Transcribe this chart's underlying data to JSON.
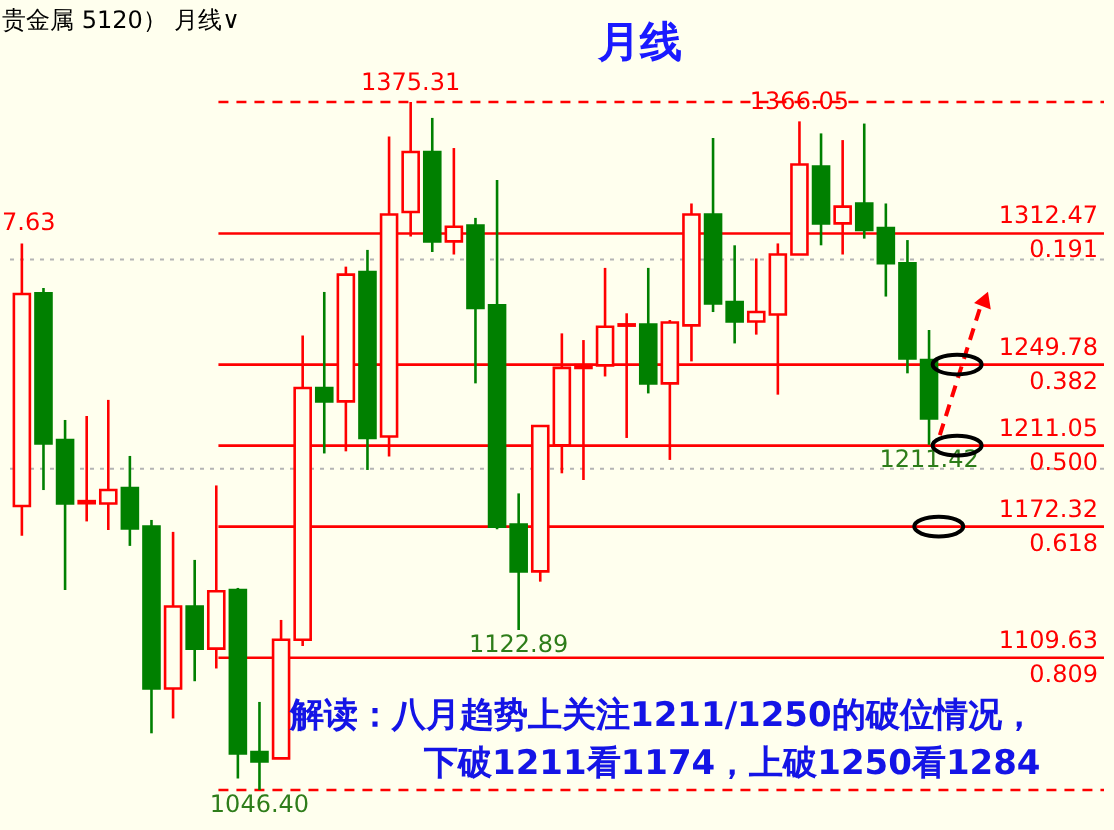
{
  "chart_data": {
    "type": "candlestick",
    "title": "月线",
    "categories": [
      null,
      null,
      null,
      null,
      null,
      null,
      null,
      null,
      null,
      null,
      null,
      null,
      null,
      null,
      null,
      null,
      null,
      null,
      null,
      null,
      null,
      null,
      null,
      null,
      null,
      null,
      null,
      null,
      null,
      null,
      null,
      null,
      null,
      null,
      null,
      null,
      null,
      null,
      null,
      null,
      null,
      null,
      null
    ],
    "ohlc": [
      [
        1182.2,
        1307.63,
        1167.9,
        1283.5
      ],
      [
        1283.8,
        1286.4,
        1189.8,
        1212.1
      ],
      [
        1213.7,
        1223.3,
        1142.0,
        1183.4
      ],
      [
        1183.5,
        1225.2,
        1174.8,
        1184.5
      ],
      [
        1183.4,
        1232.9,
        1170.7,
        1189.8
      ],
      [
        1190.8,
        1206.1,
        1163.1,
        1171.4
      ],
      [
        1172.3,
        1175.5,
        1073.5,
        1094.9
      ],
      [
        1094.9,
        1169.8,
        1080.6,
        1134.1
      ],
      [
        1134.1,
        1156.4,
        1098.4,
        1114.0
      ],
      [
        1114.0,
        1192.0,
        1104.5,
        1141.4
      ],
      [
        1142.0,
        1143.0,
        1051.9,
        1063.9
      ],
      [
        1064.6,
        1088.5,
        1046.4,
        1060.1
      ],
      [
        1061.5,
        1127.7,
        1061.5,
        1118.2
      ],
      [
        1118.2,
        1263.7,
        1115.3,
        1238.6
      ],
      [
        1238.6,
        1284.5,
        1207.3,
        1232.2
      ],
      [
        1232.2,
        1296.6,
        1208.3,
        1292.8
      ],
      [
        1294.0,
        1304.6,
        1199.4,
        1214.7
      ],
      [
        1215.4,
        1358.8,
        1205.8,
        1321.5
      ],
      [
        1322.7,
        1375.31,
        1311.0,
        1351.4
      ],
      [
        1351.4,
        1367.7,
        1303.6,
        1308.7
      ],
      [
        1308.7,
        1353.3,
        1302.4,
        1315.7
      ],
      [
        1316.3,
        1319.9,
        1240.8,
        1276.8
      ],
      [
        1278.1,
        1338.0,
        1171.0,
        1172.3
      ],
      [
        1173.3,
        1188.2,
        1122.89,
        1150.9
      ],
      [
        1150.9,
        1220.4,
        1146.0,
        1220.4
      ],
      [
        1211.2,
        1264.7,
        1197.8,
        1248.2
      ],
      [
        1248.2,
        1261.5,
        1194.6,
        1249.5
      ],
      [
        1249.4,
        1296.0,
        1244.1,
        1267.9
      ],
      [
        1268.4,
        1274.3,
        1214.7,
        1269.0
      ],
      [
        1268.9,
        1296.0,
        1236.0,
        1240.8
      ],
      [
        1240.8,
        1271.1,
        1204.2,
        1269.9
      ],
      [
        1268.5,
        1326.8,
        1251.3,
        1321.5
      ],
      [
        1321.5,
        1358.1,
        1274.9,
        1279.0
      ],
      [
        1279.7,
        1306.8,
        1259.9,
        1270.4
      ],
      [
        1270.4,
        1300.5,
        1264.1,
        1274.9
      ],
      [
        1273.7,
        1307.7,
        1235.4,
        1302.4
      ],
      [
        1302.4,
        1366.05,
        1302.4,
        1345.4
      ],
      [
        1344.4,
        1360.3,
        1306.8,
        1317.3
      ],
      [
        1317.3,
        1357.1,
        1302.4,
        1325.3
      ],
      [
        1326.8,
        1365.0,
        1310.0,
        1314.1
      ],
      [
        1315.1,
        1326.8,
        1282.3,
        1298.2
      ],
      [
        1298.2,
        1309.3,
        1245.6,
        1252.7
      ],
      [
        1252.0,
        1266.3,
        1211.42,
        1224.0
      ]
    ],
    "colors": [
      "#ff0000",
      "#008000",
      "#008000",
      "#ff0000",
      "#ff0000",
      "#008000",
      "#008000",
      "#ff0000",
      "#008000",
      "#ff0000",
      "#008000",
      "#008000",
      "#ff0000",
      "#ff0000",
      "#008000",
      "#ff0000",
      "#008000",
      "#ff0000",
      "#ff0000",
      "#008000",
      "#ff0000",
      "#008000",
      "#008000",
      "#008000",
      "#ff0000",
      "#ff0000",
      "#ff0000",
      "#ff0000",
      "#ff0000",
      "#008000",
      "#ff0000",
      "#ff0000",
      "#008000",
      "#008000",
      "#ff0000",
      "#ff0000",
      "#ff0000",
      "#008000",
      "#ff0000",
      "#008000",
      "#008000",
      "#008000",
      "#008000"
    ],
    "ref_lines": [
      {
        "axis": "y",
        "value": 1312.47,
        "label": "1312.47",
        "color": "#ff0000",
        "line_style": "solid"
      },
      {
        "axis": "y",
        "value": 1249.78,
        "label": "1249.78",
        "color": "#ff0000",
        "line_style": "solid"
      },
      {
        "axis": "y",
        "value": 1211.05,
        "label": "1211.05",
        "color": "#ff0000",
        "line_style": "solid"
      },
      {
        "axis": "y",
        "value": 1172.32,
        "label": "1172.32",
        "color": "#ff0000",
        "line_style": "solid"
      },
      {
        "axis": "y",
        "value": 1109.63,
        "label": "1109.63",
        "color": "#ff0000",
        "line_style": "solid"
      },
      {
        "axis": "y",
        "value": 1375.31,
        "color": "#ff0000",
        "line_style": "dashed"
      },
      {
        "axis": "y",
        "value": 1046.4,
        "color": "#ff0000",
        "line_style": "dashed"
      },
      {
        "axis": "y",
        "value": 1300,
        "color": "#b4b4b4",
        "line_style": "dotted"
      },
      {
        "axis": "y",
        "value": 1200,
        "color": "#b4b4b4",
        "line_style": "dotted"
      }
    ],
    "annotations": [
      "贵金属 5120）  月线∨",
      "解读：八月趋势上关注1211/1250的破位情况，",
      "下破1211看1174，上破1250看1284",
      "7.63",
      {
        "text": "1375.31",
        "y": 1375.31
      },
      {
        "text": "1366.05",
        "y": 1366.05
      },
      {
        "text": "1046.40",
        "y": 1046.4
      },
      {
        "text": "1122.89",
        "y": 1122.89
      },
      {
        "text": "1211.42",
        "y": 1211.42
      },
      {
        "text": "0.191",
        "y": 1312.47
      },
      {
        "text": "0.382",
        "y": 1249.78
      },
      {
        "text": "0.500",
        "y": 1211.05
      },
      {
        "text": "0.618",
        "y": 1172.32
      },
      {
        "text": "0.809",
        "y": 1109.63
      }
    ],
    "grid": false
  }
}
